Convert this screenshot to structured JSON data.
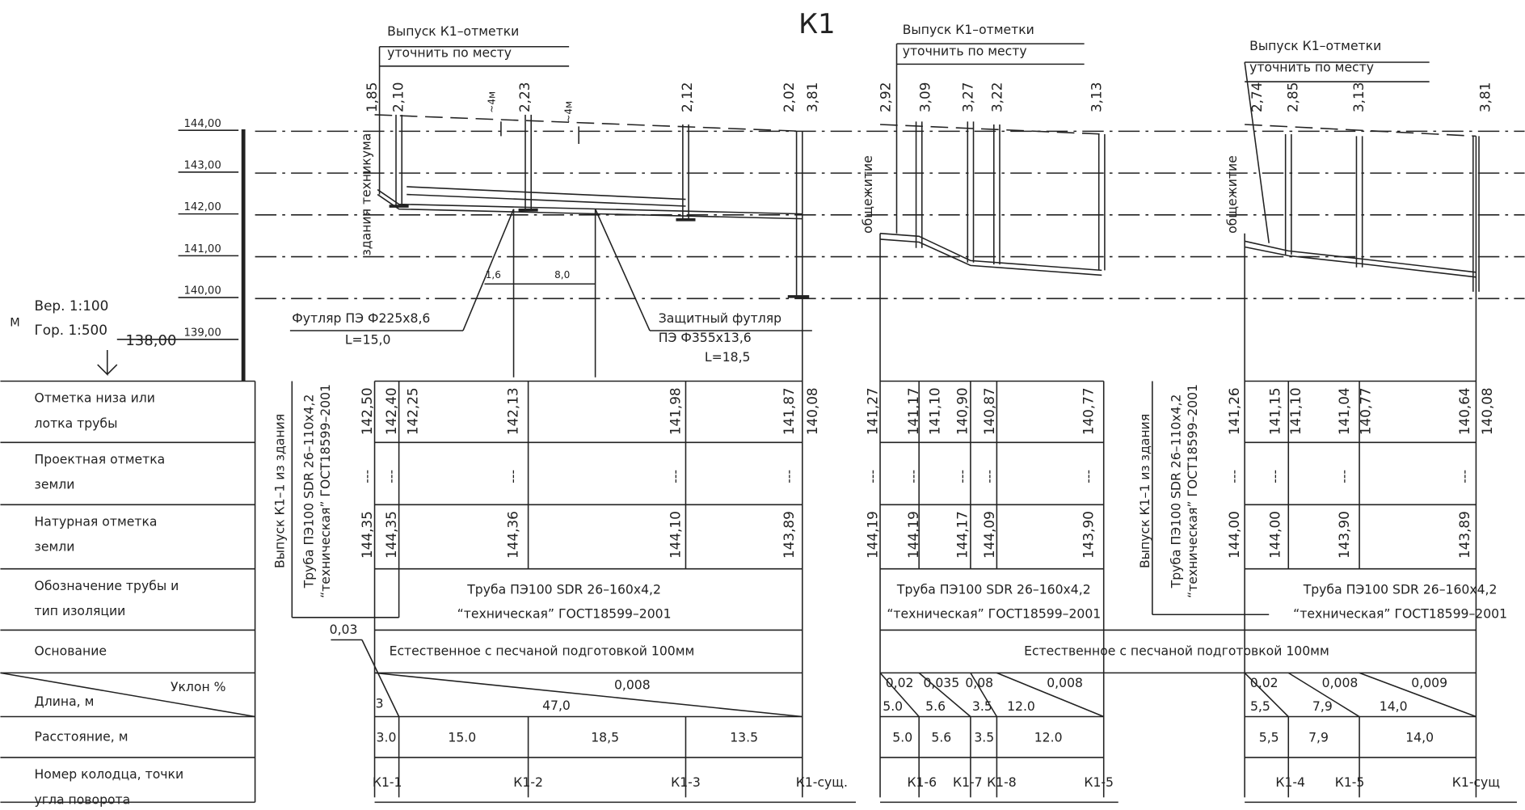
{
  "title": "К1",
  "scale": {
    "unit": "М",
    "vertical": "Вер. 1:100",
    "horizontal": "Гор. 1:500",
    "datum": "138,00"
  },
  "elevation_axis": [
    "144,00",
    "143,00",
    "142,00",
    "141,00",
    "140,00",
    "139,00"
  ],
  "row_headers": [
    [
      "Отметка низа или",
      "лотка трубы"
    ],
    [
      "Проектная отметка",
      "земли"
    ],
    [
      "Натурная отметка",
      "земли"
    ],
    [
      "Обозначение трубы и",
      "тип изоляции"
    ],
    [
      "Основание"
    ],
    [
      "Длина, м"
    ],
    [
      "Расстояние, м"
    ],
    [
      "Номер колодца, точки",
      "угла поворота"
    ]
  ],
  "slope_header": "Уклон %",
  "sections": [
    {
      "outlet_note": [
        "Выпуск К1–отметки",
        "уточнить по месту"
      ],
      "building": "здания техникума",
      "outlet_pipe": [
        "Выпуск К1–1 из здания",
        "Труба ПЭ100 SDR 26–110х4,2",
        "“техническая” ГОСТ18599–2001"
      ],
      "depths": [
        "1,85",
        "2,10",
        "2,23",
        "2,12",
        "2,02",
        "3,81"
      ],
      "invert": [
        "142,50",
        "142,40",
        "142,25",
        "142,13",
        "141,98",
        "141,87",
        "140,08"
      ],
      "design_ground": [
        "---",
        "---",
        "---",
        "---",
        "---"
      ],
      "natural_ground": [
        "144,35",
        "144,35",
        "144,36",
        "144,10",
        "143,89"
      ],
      "pipe": [
        "Труба ПЭ100 SDR 26–160х4,2",
        "“техническая” ГОСТ18599–2001"
      ],
      "base": "Естественное с песчаной подготовкой 100мм",
      "slopes": [
        "0,03",
        "0,008"
      ],
      "lengths": [
        "3",
        "47,0"
      ],
      "distances": [
        "3.0",
        "15.0",
        "18,5",
        "13.5"
      ],
      "wells": [
        "К1-1",
        "К1-2",
        "К1-3",
        "К1-сущ."
      ]
    },
    {
      "outlet_note": [
        "Выпуск К1–отметки",
        "уточнить по месту"
      ],
      "building": "общежитие",
      "depths": [
        "2,92",
        "3,09",
        "3,27",
        "3,22",
        "3,13"
      ],
      "invert": [
        "141,27",
        "141,17",
        "141,10",
        "140,90",
        "140,87",
        "140,77"
      ],
      "design_ground": [
        "---",
        "---",
        "---",
        "---",
        "---"
      ],
      "natural_ground": [
        "144,19",
        "144,19",
        "144,17",
        "144,09",
        "143,90"
      ],
      "pipe": [
        "Труба ПЭ100 SDR 26–160х4,2",
        "“техническая” ГОСТ18599–2001"
      ],
      "base": "Естественное с песчаной подготовкой 100мм",
      "slopes": [
        "0,02",
        "0,035",
        "0,08",
        "0,008"
      ],
      "lengths": [
        "5.0",
        "5.6",
        "3.5",
        "12.0"
      ],
      "distances": [
        "5.0",
        "5.6",
        "3.5",
        "12.0"
      ],
      "wells": [
        "К1-6",
        "К1-7",
        "К1-8",
        "К1-5"
      ]
    },
    {
      "outlet_note": [
        "Выпуск К1–отметки",
        "уточнить по месту"
      ],
      "building": "общежитие",
      "outlet_pipe": [
        "Выпуск К1–1 из здания",
        "Труба ПЭ100 SDR 26–110х4,2",
        "“техническая” ГОСТ18599–2001"
      ],
      "depths": [
        "2,74",
        "2,85",
        "3,13",
        "3,81"
      ],
      "invert": [
        "141,26",
        "141,15",
        "141,10",
        "141,04",
        "140,77",
        "140,64",
        "140,08"
      ],
      "design_ground": [
        "---",
        "---",
        "---",
        "---"
      ],
      "natural_ground": [
        "144,00",
        "144,00",
        "143,90",
        "143,89"
      ],
      "pipe": [
        "Труба ПЭ100 SDR 26–160х4,2",
        "“техническая” ГОСТ18599–2001"
      ],
      "slopes": [
        "0,02",
        "0,008",
        "0,009"
      ],
      "lengths": [
        "5,5",
        "7,9",
        "14,0"
      ],
      "distances": [
        "5,5",
        "7,9",
        "14,0"
      ],
      "wells": [
        "К1-4",
        "К1-5",
        "К1-сущ"
      ]
    }
  ],
  "annotations": {
    "casing_1": [
      "Футляр ПЭ Ф225х8,6",
      "L=15,0"
    ],
    "casing_2": [
      "Защитный футляр",
      "ПЭ Ф355х13,6",
      "L=18,5"
    ],
    "dim_1": "1,6",
    "dim_2": "8,0",
    "depth_marks": [
      "~4м",
      "~4м"
    ]
  }
}
